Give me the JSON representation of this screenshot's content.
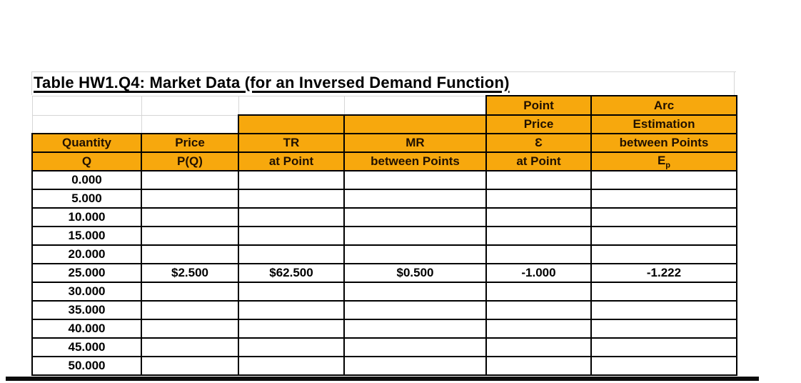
{
  "title": "Table HW1.Q4: Market Data (for an Inversed Demand Function)",
  "colors": {
    "header_fill": "#f7a80d",
    "header_text": "#201000",
    "cell_border": "#000000",
    "gridline": "#d6d6d6",
    "data_text": "#000000"
  },
  "headers": {
    "point": "Point",
    "arc": "Arc",
    "price_label2": "Price",
    "estimation": "Estimation",
    "quantity": "Quantity",
    "price": "Price",
    "tr": "TR",
    "mr": "MR",
    "epsilon": "Ɛ",
    "between_points": "between Points",
    "q": "Q",
    "pq": "P(Q)",
    "tr_at_point": "at Point",
    "mr_between_points": "between Points",
    "eps_at_point": "at Point",
    "ep_base": "E",
    "ep_sub": "p"
  },
  "rows": [
    {
      "q": "0.000",
      "p": "",
      "tr": "",
      "mr": "",
      "eps": "",
      "ep": ""
    },
    {
      "q": "5.000",
      "p": "",
      "tr": "",
      "mr": "",
      "eps": "",
      "ep": ""
    },
    {
      "q": "10.000",
      "p": "",
      "tr": "",
      "mr": "",
      "eps": "",
      "ep": ""
    },
    {
      "q": "15.000",
      "p": "",
      "tr": "",
      "mr": "",
      "eps": "",
      "ep": ""
    },
    {
      "q": "20.000",
      "p": "",
      "tr": "",
      "mr": "",
      "eps": "",
      "ep": ""
    },
    {
      "q": "25.000",
      "p": "$2.500",
      "tr": "$62.500",
      "mr": "$0.500",
      "eps": "-1.000",
      "ep": "-1.222"
    },
    {
      "q": "30.000",
      "p": "",
      "tr": "",
      "mr": "",
      "eps": "",
      "ep": ""
    },
    {
      "q": "35.000",
      "p": "",
      "tr": "",
      "mr": "",
      "eps": "",
      "ep": ""
    },
    {
      "q": "40.000",
      "p": "",
      "tr": "",
      "mr": "",
      "eps": "",
      "ep": ""
    },
    {
      "q": "45.000",
      "p": "",
      "tr": "",
      "mr": "",
      "eps": "",
      "ep": ""
    },
    {
      "q": "50.000",
      "p": "",
      "tr": "",
      "mr": "",
      "eps": "",
      "ep": ""
    }
  ]
}
